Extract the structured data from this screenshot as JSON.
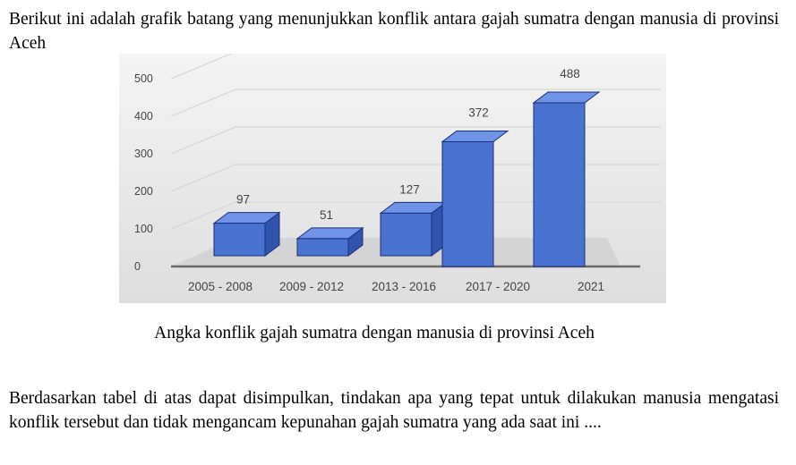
{
  "intro_text": "Berikut ini adalah grafik batang yang menunjukkan konflik antara gajah sumatra dengan manusia di provinsi Aceh",
  "chart_data": {
    "type": "bar",
    "categories": [
      "2005 - 2008",
      "2009 - 2012",
      "2013 - 2016",
      "2017 - 2020",
      "2021"
    ],
    "values": [
      97,
      51,
      127,
      372,
      488
    ],
    "data_labels": [
      "97",
      "51",
      "127",
      "372",
      "488"
    ],
    "y_ticks": [
      "0",
      "100",
      "200",
      "300",
      "400",
      "500"
    ],
    "ylim": [
      0,
      500
    ],
    "title": "",
    "xlabel": "",
    "ylabel": "",
    "grid": true,
    "style": "3d-column",
    "bar_color": "#4a72d0",
    "bar_top_color": "#6f93e6",
    "bar_side_color": "#2f55ae",
    "bar_outline": "#1c2f7a"
  },
  "caption": "Angka konflik gajah sumatra dengan manusia di provinsi Aceh",
  "question_text": "Berdasarkan tabel di atas dapat disimpulkan, tindakan apa yang tepat untuk dilakukan manusia mengatasi konflik tersebut dan tidak mengancam kepunahan gajah sumatra yang ada saat ini ...."
}
